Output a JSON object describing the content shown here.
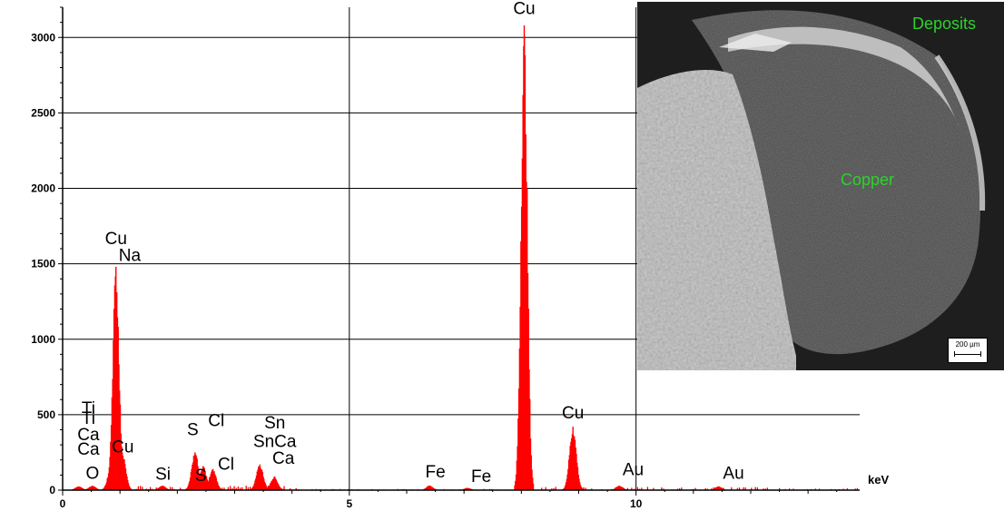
{
  "chart_data": {
    "type": "bar",
    "title": "",
    "xlabel": "keV",
    "ylabel": "",
    "xlim": [
      0,
      13.9
    ],
    "ylim": [
      0,
      3200
    ],
    "grid": true,
    "x_ticks": [
      "0",
      "5",
      "10"
    ],
    "y_ticks": [
      "0",
      "500",
      "1000",
      "1500",
      "2000",
      "2500",
      "3000"
    ],
    "series": [
      {
        "peaks": [
          {
            "x": 0.28,
            "y": 25
          },
          {
            "x": 0.52,
            "y": 30
          },
          {
            "x": 0.85,
            "y": 160
          },
          {
            "x": 0.93,
            "y": 1480
          },
          {
            "x": 1.04,
            "y": 250
          },
          {
            "x": 1.74,
            "y": 30
          },
          {
            "x": 2.31,
            "y": 250
          },
          {
            "x": 2.45,
            "y": 160
          },
          {
            "x": 2.62,
            "y": 140
          },
          {
            "x": 3.44,
            "y": 170
          },
          {
            "x": 3.69,
            "y": 90
          },
          {
            "x": 6.4,
            "y": 30
          },
          {
            "x": 7.06,
            "y": 15
          },
          {
            "x": 8.05,
            "y": 3080
          },
          {
            "x": 8.9,
            "y": 420
          },
          {
            "x": 9.71,
            "y": 30
          },
          {
            "x": 11.44,
            "y": 25
          }
        ]
      }
    ],
    "annotations": [
      {
        "text": "Cu",
        "x": 0.93,
        "y": 1630
      },
      {
        "text": "Na",
        "x": 1.17,
        "y": 1520
      },
      {
        "text": "Ti",
        "x": 0.45,
        "y": 505
      },
      {
        "text": "Ti",
        "x": 0.45,
        "y": 440
      },
      {
        "text": "Ca",
        "x": 0.45,
        "y": 330
      },
      {
        "text": "Ca",
        "x": 0.45,
        "y": 235
      },
      {
        "text": "Cu",
        "x": 1.05,
        "y": 250
      },
      {
        "text": "O",
        "x": 0.52,
        "y": 75
      },
      {
        "text": "S",
        "x": 2.27,
        "y": 365
      },
      {
        "text": "Cl",
        "x": 2.68,
        "y": 425
      },
      {
        "text": "Si",
        "x": 1.75,
        "y": 70
      },
      {
        "text": "S",
        "x": 2.41,
        "y": 60
      },
      {
        "text": "Cl",
        "x": 2.85,
        "y": 135
      },
      {
        "text": "Sn",
        "x": 3.7,
        "y": 410
      },
      {
        "text": "SnCa",
        "x": 3.7,
        "y": 285
      },
      {
        "text": "Ca",
        "x": 3.85,
        "y": 175
      },
      {
        "text": "Fe",
        "x": 6.5,
        "y": 85
      },
      {
        "text": "Fe",
        "x": 7.3,
        "y": 55
      },
      {
        "text": "Cu",
        "x": 8.05,
        "y": 3155
      },
      {
        "text": "Cu",
        "x": 8.9,
        "y": 475
      },
      {
        "text": "Au",
        "x": 9.95,
        "y": 100
      },
      {
        "text": "Au",
        "x": 11.7,
        "y": 75
      }
    ],
    "inset": {
      "labels": [
        "Deposits",
        "Copper"
      ],
      "scale_bar": "200 µm"
    }
  },
  "colors": {
    "spectrum": "#ff0000",
    "inset_text": "#2bd32b"
  }
}
